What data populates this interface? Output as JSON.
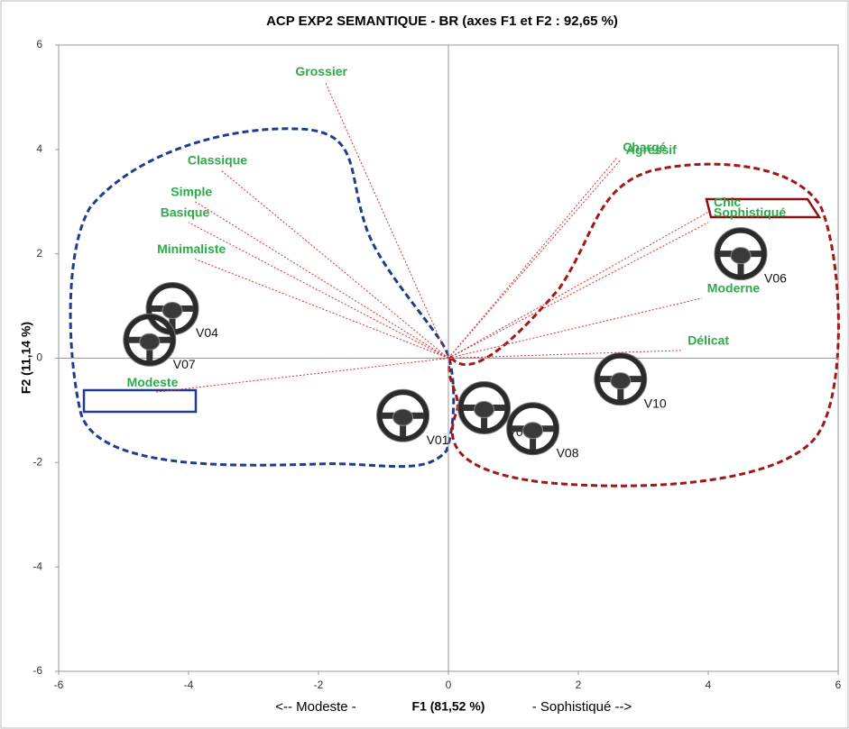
{
  "chart_data": {
    "type": "biplot",
    "title": "ACP EXP2 SEMANTIQUE - BR (axes F1 et F2 : 92,65 %)",
    "x_label": "F1 (81,52 %)",
    "x_label_left": "<-- Modeste -",
    "x_label_right": "- Sophistiqué -->",
    "y_label": "F2 (11,14 %)",
    "xlim": [
      -6,
      6
    ],
    "ylim": [
      -6,
      6
    ],
    "xticks": [
      -6,
      -4,
      -2,
      0,
      2,
      4,
      6
    ],
    "yticks": [
      -6,
      -4,
      -2,
      0,
      2,
      4,
      6
    ],
    "variables": {
      "color": "#e03030",
      "label_color": "#2eaa4a",
      "names": [
        "Grossier",
        "Chargé",
        "Agressif",
        "Chic",
        "Sophistiqué",
        "Moderne",
        "Délicat",
        "Classique",
        "Simple",
        "Basique",
        "Minimaliste",
        "Modeste"
      ],
      "x": [
        -1.9,
        2.6,
        2.65,
        4.0,
        4.0,
        3.9,
        3.6,
        -3.5,
        -3.9,
        -4.0,
        -3.9,
        -4.5
      ],
      "y": [
        5.3,
        3.85,
        3.8,
        2.8,
        2.6,
        1.15,
        0.15,
        3.6,
        3.0,
        2.6,
        1.9,
        -0.65
      ]
    },
    "observations": {
      "names": [
        "V04",
        "V07",
        "V01",
        "V09",
        "V08",
        "V10",
        "V06"
      ],
      "x": [
        -4.25,
        -4.6,
        -0.7,
        0.55,
        1.3,
        2.65,
        4.5
      ],
      "y": [
        0.95,
        0.35,
        -1.1,
        -0.95,
        -1.35,
        -0.4,
        2.0
      ]
    }
  }
}
